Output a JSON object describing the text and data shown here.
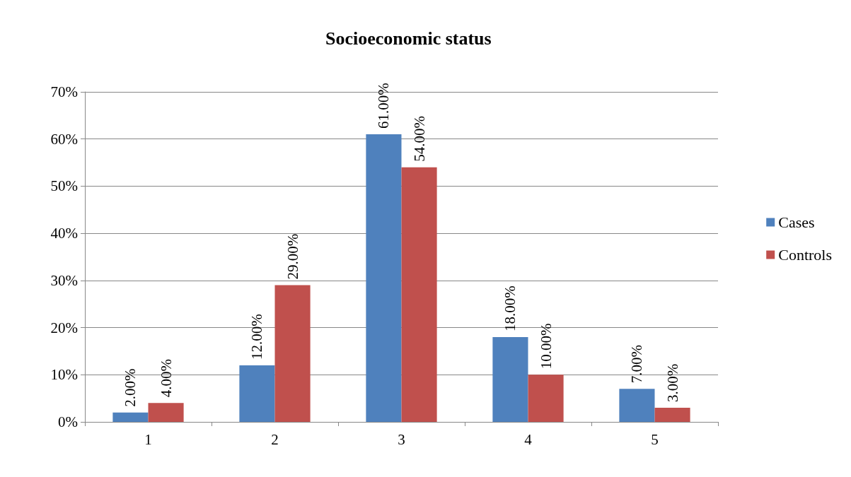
{
  "chart_data": {
    "type": "bar",
    "title": "Socioeconomic status",
    "categories": [
      "1",
      "2",
      "3",
      "4",
      "5"
    ],
    "series": [
      {
        "name": "Cases",
        "color": "#4f81bd",
        "values": [
          2,
          12,
          61,
          18,
          7
        ],
        "value_labels": [
          "2.00%",
          "12.00%",
          "61.00%",
          "18.00%",
          "7.00%"
        ]
      },
      {
        "name": "Controls",
        "color": "#c0504d",
        "values": [
          4,
          29,
          54,
          10,
          3
        ],
        "value_labels": [
          "4.00%",
          "29.00%",
          "54.00%",
          "10.00%",
          "3.00%"
        ]
      }
    ],
    "ylim": [
      0,
      70
    ],
    "yticks": [
      {
        "value": 0,
        "label": "0%"
      },
      {
        "value": 10,
        "label": "10%"
      },
      {
        "value": 20,
        "label": "20%"
      },
      {
        "value": 30,
        "label": "30%"
      },
      {
        "value": 40,
        "label": "40%"
      },
      {
        "value": 50,
        "label": "50%"
      },
      {
        "value": 60,
        "label": "60%"
      },
      {
        "value": 70,
        "label": "70%"
      }
    ],
    "grid": "y",
    "legend": "right"
  }
}
